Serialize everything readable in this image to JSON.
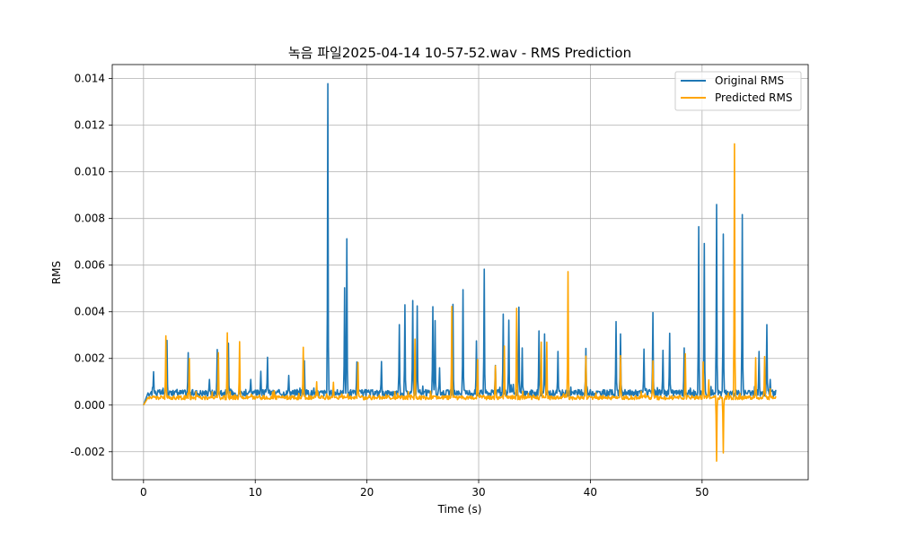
{
  "chart_data": {
    "type": "line",
    "title": "녹음 파일2025-04-14 10-57-52.wav - RMS Prediction",
    "xlabel": "Time (s)",
    "ylabel": "RMS",
    "xlim": [
      -2.8,
      59.5
    ],
    "ylim": [
      -0.0032,
      0.0146
    ],
    "xticks": [
      0,
      10,
      20,
      30,
      40,
      50
    ],
    "xtick_labels": [
      "0",
      "10",
      "20",
      "30",
      "40",
      "50"
    ],
    "yticks": [
      -0.002,
      0.0,
      0.002,
      0.004,
      0.006,
      0.008,
      0.01,
      0.012,
      0.014
    ],
    "ytick_labels": [
      "-0.002",
      "0.000",
      "0.002",
      "0.004",
      "0.006",
      "0.008",
      "0.010",
      "0.012",
      "0.014"
    ],
    "grid": true,
    "legend_position": "top-right",
    "duration": 56.6,
    "series": [
      {
        "name": "Original RMS",
        "color": "#1f77b4",
        "baseline": 0.00052,
        "peaks": [
          [
            0.9,
            0.00143
          ],
          [
            2.1,
            0.00277
          ],
          [
            4.0,
            0.00225
          ],
          [
            5.9,
            0.0011
          ],
          [
            6.6,
            0.00238
          ],
          [
            7.6,
            0.00265
          ],
          [
            9.6,
            0.0011
          ],
          [
            10.5,
            0.00145
          ],
          [
            11.1,
            0.00205
          ],
          [
            13.0,
            0.00127
          ],
          [
            14.4,
            0.0019
          ],
          [
            16.5,
            0.01378
          ],
          [
            18.0,
            0.00503
          ],
          [
            18.2,
            0.00713
          ],
          [
            19.1,
            0.00185
          ],
          [
            21.3,
            0.00187
          ],
          [
            22.9,
            0.00345
          ],
          [
            23.4,
            0.0043
          ],
          [
            24.1,
            0.00448
          ],
          [
            24.5,
            0.00425
          ],
          [
            25.9,
            0.00422
          ],
          [
            26.1,
            0.00362
          ],
          [
            26.5,
            0.0016
          ],
          [
            27.7,
            0.00432
          ],
          [
            28.6,
            0.00495
          ],
          [
            29.8,
            0.00275
          ],
          [
            30.5,
            0.00583
          ],
          [
            31.5,
            0.0017
          ],
          [
            32.2,
            0.0039
          ],
          [
            32.7,
            0.00364
          ],
          [
            33.6,
            0.0042
          ],
          [
            33.9,
            0.00245
          ],
          [
            35.4,
            0.00318
          ],
          [
            35.9,
            0.00305
          ],
          [
            37.1,
            0.0023
          ],
          [
            39.6,
            0.00243
          ],
          [
            42.3,
            0.00358
          ],
          [
            42.7,
            0.00305
          ],
          [
            44.8,
            0.0024
          ],
          [
            45.6,
            0.00397
          ],
          [
            46.5,
            0.00235
          ],
          [
            47.1,
            0.00308
          ],
          [
            48.4,
            0.00245
          ],
          [
            49.7,
            0.00765
          ],
          [
            50.2,
            0.00693
          ],
          [
            51.3,
            0.0086
          ],
          [
            51.9,
            0.00733
          ],
          [
            53.6,
            0.00817
          ],
          [
            55.1,
            0.0023
          ],
          [
            55.8,
            0.00345
          ],
          [
            56.1,
            0.0011
          ]
        ]
      },
      {
        "name": "Predicted RMS",
        "color": "#ffa500",
        "baseline": 0.00032,
        "peaks": [
          [
            2.0,
            0.00297
          ],
          [
            4.1,
            0.002
          ],
          [
            6.7,
            0.00225
          ],
          [
            7.5,
            0.0031
          ],
          [
            8.6,
            0.00272
          ],
          [
            14.3,
            0.00248
          ],
          [
            15.5,
            0.001
          ],
          [
            17.0,
            0.00098
          ],
          [
            19.2,
            0.00183
          ],
          [
            24.3,
            0.00283
          ],
          [
            27.6,
            0.00423
          ],
          [
            29.9,
            0.00195
          ],
          [
            31.5,
            0.00168
          ],
          [
            32.3,
            0.00253
          ],
          [
            33.4,
            0.00415
          ],
          [
            35.6,
            0.0027
          ],
          [
            36.1,
            0.0027
          ],
          [
            38.0,
            0.00572
          ],
          [
            39.6,
            0.0021
          ],
          [
            42.7,
            0.00212
          ],
          [
            45.6,
            0.0019
          ],
          [
            48.5,
            0.0022
          ],
          [
            50.1,
            0.00185
          ],
          [
            50.6,
            0.00108
          ],
          [
            51.3,
            -0.0024
          ],
          [
            51.9,
            -0.00205
          ],
          [
            52.9,
            0.0112
          ],
          [
            54.8,
            0.00203
          ],
          [
            55.6,
            0.00208
          ],
          [
            56.1,
            0.0007
          ]
        ]
      }
    ]
  }
}
